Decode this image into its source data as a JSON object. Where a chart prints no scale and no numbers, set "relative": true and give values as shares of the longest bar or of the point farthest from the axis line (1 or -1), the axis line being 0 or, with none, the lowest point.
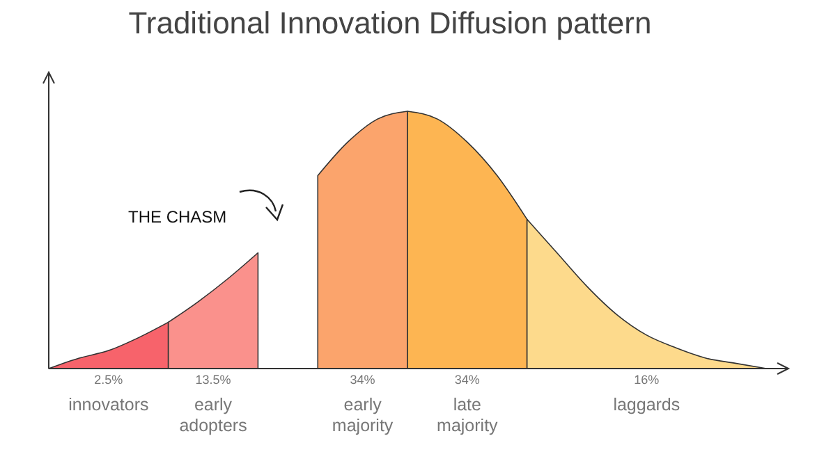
{
  "chart_data": {
    "type": "area",
    "title": "Traditional Innovation Diffusion pattern",
    "relative": true,
    "categories": [
      null,
      null,
      null,
      null,
      null,
      null,
      null,
      null,
      null,
      null,
      null,
      null,
      null,
      null,
      null,
      null,
      null,
      null,
      null,
      null,
      null,
      null,
      null,
      null,
      null
    ],
    "series": [
      {
        "name": "innovators",
        "color": "#f7636b",
        "values": [
          0.0,
          0.04,
          0.07,
          0.12,
          0.18,
          null,
          null,
          null,
          null,
          null,
          null,
          null,
          null,
          null,
          null,
          null,
          null,
          null,
          null,
          null,
          null,
          null,
          null,
          null,
          null
        ]
      },
      {
        "name": "early adopters",
        "color": "#fa918c",
        "values": [
          null,
          null,
          null,
          null,
          0.18,
          0.26,
          0.35,
          0.45,
          null,
          null,
          null,
          null,
          null,
          null,
          null,
          null,
          null,
          null,
          null,
          null,
          null,
          null,
          null,
          null,
          null
        ]
      },
      {
        "name": "early majority",
        "color": "#fba46c",
        "values": [
          null,
          null,
          null,
          null,
          null,
          null,
          null,
          null,
          null,
          0.75,
          0.88,
          0.97,
          1.0,
          null,
          null,
          null,
          null,
          null,
          null,
          null,
          null,
          null,
          null,
          null,
          null
        ]
      },
      {
        "name": "late majority",
        "color": "#fdb552",
        "values": [
          null,
          null,
          null,
          null,
          null,
          null,
          null,
          null,
          null,
          null,
          null,
          null,
          1.0,
          0.97,
          0.88,
          0.75,
          0.58,
          null,
          null,
          null,
          null,
          null,
          null,
          null,
          null
        ]
      },
      {
        "name": "laggards",
        "color": "#fdda8c",
        "values": [
          null,
          null,
          null,
          null,
          null,
          null,
          null,
          null,
          null,
          null,
          null,
          null,
          null,
          null,
          null,
          null,
          0.58,
          0.45,
          0.32,
          0.21,
          0.13,
          0.08,
          0.04,
          0.02,
          0.0
        ]
      }
    ],
    "annotations": [
      "2.5%",
      "13.5%",
      "34%",
      "34%",
      "16%",
      "THE CHASM"
    ]
  }
}
